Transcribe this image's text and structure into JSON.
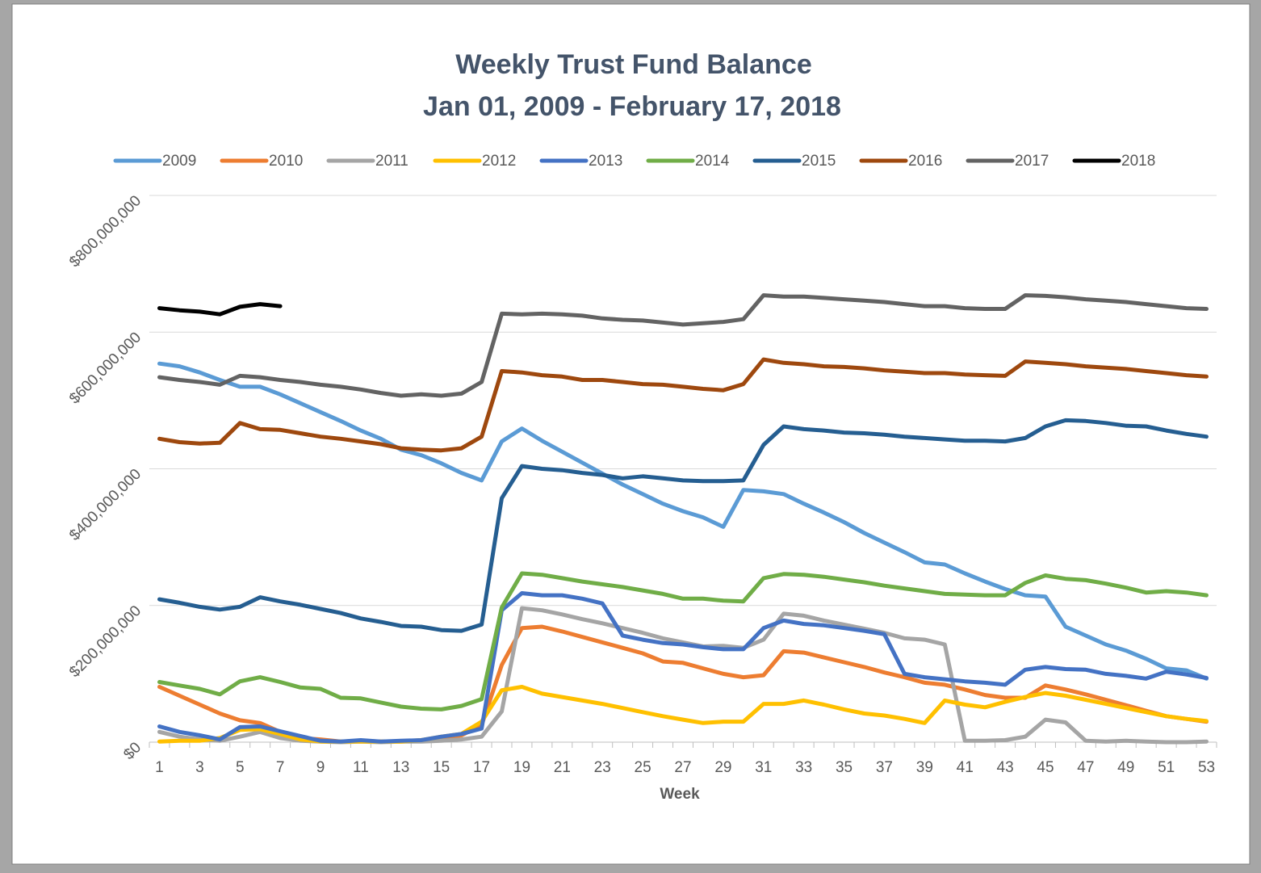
{
  "chart_data": {
    "type": "line",
    "title": "Weekly Trust Fund Balance",
    "subtitle": "Jan 01, 2009 - February 17, 2018",
    "x_label": "Week",
    "categories": [
      1,
      null,
      3,
      null,
      5,
      null,
      7,
      null,
      9,
      null,
      11,
      null,
      13,
      null,
      15,
      null,
      17,
      null,
      19,
      null,
      21,
      null,
      23,
      null,
      25,
      null,
      27,
      null,
      29,
      null,
      31,
      null,
      33,
      null,
      35,
      null,
      37,
      null,
      39,
      null,
      41,
      null,
      43,
      null,
      45,
      null,
      47,
      null,
      49,
      null,
      51,
      null,
      53
    ],
    "ylim": [
      0,
      800000000
    ],
    "yticks": [
      {
        "value": 0,
        "label": "$0"
      },
      {
        "value": 200000000,
        "label": "$200,000,000"
      },
      {
        "value": 400000000,
        "label": "$400,000,000"
      },
      {
        "value": 600000000,
        "label": "$600,000,000"
      },
      {
        "value": 800000000,
        "label": "$800,000,000"
      }
    ],
    "grid": true,
    "legend": "top",
    "series": [
      {
        "name": "2009",
        "color": "#5b9bd5",
        "values": [
          554000000,
          550000000,
          541000000,
          530000000,
          520000000,
          520000000,
          509000000,
          496000000,
          483000000,
          470000000,
          456000000,
          444000000,
          428000000,
          420000000,
          408000000,
          394000000,
          383000000,
          440000000,
          459000000,
          441000000,
          425000000,
          409000000,
          393000000,
          377000000,
          363000000,
          349000000,
          338000000,
          329000000,
          315000000,
          369000000,
          367000000,
          363000000,
          349000000,
          336000000,
          322000000,
          306000000,
          292000000,
          278000000,
          263000000,
          260000000,
          247000000,
          235000000,
          224000000,
          215000000,
          213000000,
          169000000,
          156000000,
          143000000,
          134000000,
          122000000,
          108000000,
          105000000,
          93000000
        ]
      },
      {
        "name": "2010",
        "color": "#ed7d31",
        "values": [
          81000000,
          68000000,
          55000000,
          42000000,
          32000000,
          28000000,
          15000000,
          6000000,
          4000000,
          1000000,
          2000000,
          1000000,
          1000000,
          2000000,
          5000000,
          10000000,
          25000000,
          113000000,
          167000000,
          169000000,
          162000000,
          154000000,
          146000000,
          138000000,
          130000000,
          118000000,
          116000000,
          108000000,
          100000000,
          95000000,
          98000000,
          133000000,
          131000000,
          124000000,
          117000000,
          110000000,
          102000000,
          95000000,
          87000000,
          84000000,
          77000000,
          69000000,
          65000000,
          65000000,
          83000000,
          77000000,
          70000000,
          62000000,
          54000000,
          46000000,
          38000000,
          34000000,
          30000000
        ]
      },
      {
        "name": "2011",
        "color": "#a5a5a5",
        "values": [
          15000000,
          8000000,
          4000000,
          2000000,
          8000000,
          15000000,
          6000000,
          2000000,
          1000000,
          0,
          1000000,
          0,
          1000000,
          1000000,
          2000000,
          4000000,
          8000000,
          45000000,
          196000000,
          193000000,
          187000000,
          180000000,
          174000000,
          167000000,
          160000000,
          152000000,
          146000000,
          140000000,
          141000000,
          138000000,
          150000000,
          188000000,
          185000000,
          178000000,
          172000000,
          166000000,
          160000000,
          152000000,
          150000000,
          143000000,
          2000000,
          2000000,
          3000000,
          8000000,
          33000000,
          29000000,
          2000000,
          1000000,
          2000000,
          1000000,
          0,
          0,
          1000000
        ]
      },
      {
        "name": "2012",
        "color": "#ffc000",
        "values": [
          1000000,
          2000000,
          2000000,
          6000000,
          18000000,
          19000000,
          12000000,
          4000000,
          1000000,
          1000000,
          1000000,
          1000000,
          1000000,
          3000000,
          8000000,
          12000000,
          30000000,
          76000000,
          81000000,
          71000000,
          66000000,
          61000000,
          56000000,
          50000000,
          44000000,
          38000000,
          33000000,
          28000000,
          30000000,
          30000000,
          56000000,
          56000000,
          61000000,
          55000000,
          48000000,
          42000000,
          39000000,
          34000000,
          28000000,
          61000000,
          55000000,
          51000000,
          59000000,
          66000000,
          72000000,
          68000000,
          62000000,
          56000000,
          50000000,
          44000000,
          38000000,
          34000000,
          31000000
        ]
      },
      {
        "name": "2013",
        "color": "#4472c4",
        "values": [
          23000000,
          15000000,
          10000000,
          4000000,
          22000000,
          23000000,
          16000000,
          9000000,
          2000000,
          1000000,
          3000000,
          1000000,
          2000000,
          3000000,
          8000000,
          12000000,
          20000000,
          193000000,
          218000000,
          215000000,
          215000000,
          210000000,
          203000000,
          156000000,
          150000000,
          145000000,
          143000000,
          139000000,
          136000000,
          136000000,
          167000000,
          178000000,
          173000000,
          171000000,
          167000000,
          163000000,
          158000000,
          100000000,
          95000000,
          92000000,
          89000000,
          87000000,
          84000000,
          106000000,
          110000000,
          107000000,
          106000000,
          100000000,
          97000000,
          93000000,
          103000000,
          99000000,
          94000000
        ]
      },
      {
        "name": "2014",
        "color": "#70ad47",
        "values": [
          88000000,
          83000000,
          78000000,
          70000000,
          89000000,
          95000000,
          88000000,
          80000000,
          78000000,
          65000000,
          64000000,
          58000000,
          52000000,
          49000000,
          48000000,
          53000000,
          63000000,
          197000000,
          247000000,
          245000000,
          240000000,
          235000000,
          231000000,
          227000000,
          222000000,
          217000000,
          210000000,
          210000000,
          207000000,
          206000000,
          240000000,
          246000000,
          245000000,
          242000000,
          238000000,
          234000000,
          229000000,
          225000000,
          221000000,
          217000000,
          216000000,
          215000000,
          215000000,
          233000000,
          244000000,
          239000000,
          237000000,
          232000000,
          226000000,
          219000000,
          221000000,
          219000000,
          215000000
        ]
      },
      {
        "name": "2015",
        "color": "#255e91",
        "values": [
          209000000,
          204000000,
          198000000,
          194000000,
          198000000,
          212000000,
          206000000,
          201000000,
          195000000,
          189000000,
          181000000,
          176000000,
          170000000,
          169000000,
          164000000,
          163000000,
          172000000,
          357000000,
          404000000,
          400000000,
          398000000,
          394000000,
          391000000,
          386000000,
          389000000,
          386000000,
          383000000,
          382000000,
          382000000,
          383000000,
          435000000,
          462000000,
          458000000,
          456000000,
          453000000,
          452000000,
          450000000,
          447000000,
          445000000,
          443000000,
          441000000,
          441000000,
          440000000,
          445000000,
          462000000,
          471000000,
          470000000,
          467000000,
          463000000,
          462000000,
          456000000,
          451000000,
          447000000
        ]
      },
      {
        "name": "2016",
        "color": "#9e480e",
        "values": [
          444000000,
          439000000,
          437000000,
          438000000,
          467000000,
          458000000,
          457000000,
          452000000,
          447000000,
          444000000,
          440000000,
          436000000,
          430000000,
          428000000,
          427000000,
          430000000,
          447000000,
          543000000,
          541000000,
          537000000,
          535000000,
          530000000,
          530000000,
          527000000,
          524000000,
          523000000,
          520000000,
          517000000,
          515000000,
          524000000,
          560000000,
          555000000,
          553000000,
          550000000,
          549000000,
          547000000,
          544000000,
          542000000,
          540000000,
          540000000,
          538000000,
          537000000,
          536000000,
          557000000,
          555000000,
          553000000,
          550000000,
          548000000,
          546000000,
          543000000,
          540000000,
          537000000,
          535000000
        ]
      },
      {
        "name": "2017",
        "color": "#636363",
        "values": [
          534000000,
          530000000,
          527000000,
          523000000,
          536000000,
          534000000,
          530000000,
          527000000,
          523000000,
          520000000,
          516000000,
          511000000,
          507000000,
          509000000,
          507000000,
          510000000,
          527000000,
          627000000,
          626000000,
          627000000,
          626000000,
          624000000,
          620000000,
          618000000,
          617000000,
          614000000,
          611000000,
          613000000,
          615000000,
          619000000,
          654000000,
          652000000,
          652000000,
          650000000,
          648000000,
          646000000,
          644000000,
          641000000,
          638000000,
          638000000,
          635000000,
          634000000,
          634000000,
          654000000,
          653000000,
          651000000,
          648000000,
          646000000,
          644000000,
          641000000,
          638000000,
          635000000,
          634000000
        ]
      },
      {
        "name": "2018",
        "color": "#000000",
        "values": [
          635000000,
          632000000,
          630000000,
          626000000,
          637000000,
          641000000,
          638000000,
          null,
          null,
          null,
          null,
          null,
          null,
          null,
          null,
          null,
          null,
          null,
          null,
          null,
          null,
          null,
          null,
          null,
          null,
          null,
          null,
          null,
          null,
          null,
          null,
          null,
          null,
          null,
          null,
          null,
          null,
          null,
          null,
          null,
          null,
          null,
          null,
          null,
          null,
          null,
          null,
          null,
          null,
          null,
          null,
          null,
          null
        ]
      }
    ]
  }
}
